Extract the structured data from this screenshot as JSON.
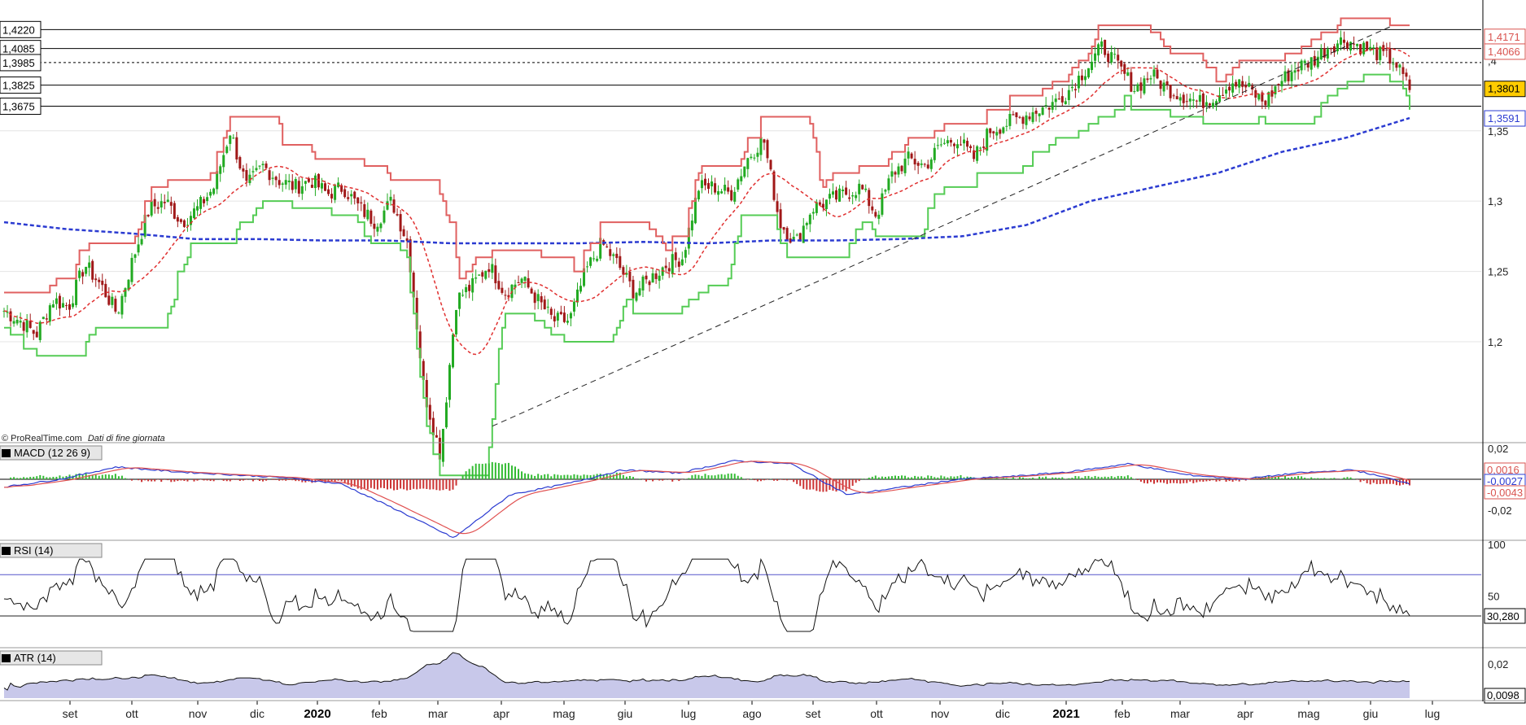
{
  "credit": {
    "source": "© ProRealTime.com",
    "note": "Dati di fine giornata"
  },
  "price_panel": {
    "y_ticks": [
      "1,35",
      "1,3",
      "1,25",
      "1,2"
    ],
    "y_tick_values": [
      1.35,
      1.3,
      1.25,
      1.2
    ],
    "y_top_label": ",4",
    "left_levels": [
      {
        "label": "1,4220",
        "value": 1.422,
        "style": "solid"
      },
      {
        "label": "1,4085",
        "value": 1.4085,
        "style": "solid"
      },
      {
        "label": "1,3985",
        "value": 1.3985,
        "style": "dashed"
      },
      {
        "label": "1,3825",
        "value": 1.3825,
        "style": "solid"
      },
      {
        "label": "1,3675",
        "value": 1.3675,
        "style": "solid"
      }
    ],
    "right_tags": [
      {
        "label": "1,4171",
        "value": 1.4171,
        "color": "#d9534f",
        "bg": "#ffffff"
      },
      {
        "label": "1,4066",
        "value": 1.4066,
        "color": "#d9534f",
        "bg": "#ffffff"
      },
      {
        "label": "1,3801",
        "value": 1.3801,
        "color": "#000000",
        "bg": "#ffcc00"
      },
      {
        "label": "1,3591",
        "value": 1.3591,
        "color": "#2b3bd1",
        "bg": "#ffffff"
      }
    ]
  },
  "macd_panel": {
    "label": "MACD (12 26 9)",
    "y_ticks": [
      "0,02",
      "-0,02"
    ],
    "y_tick_values": [
      0.02,
      -0.02
    ],
    "tags": [
      {
        "label": "0,0016",
        "color": "#d9534f"
      },
      {
        "label": "-0,0027",
        "color": "#2b3bd1"
      },
      {
        "label": "-0,0043",
        "color": "#d9534f"
      }
    ]
  },
  "rsi_panel": {
    "label": "RSI (14)",
    "y_ticks": [
      "100",
      "50"
    ],
    "y_tick_values": [
      100,
      50
    ],
    "tag": "30,280"
  },
  "atr_panel": {
    "label": "ATR (14)",
    "y_ticks": [
      "0,02"
    ],
    "y_tick_values": [
      0.02
    ],
    "tag": "0,0098"
  },
  "x_axis": {
    "ticks": [
      {
        "label": "set",
        "bold": false
      },
      {
        "label": "ott",
        "bold": false
      },
      {
        "label": "nov",
        "bold": false
      },
      {
        "label": "dic",
        "bold": false
      },
      {
        "label": "2020",
        "bold": true
      },
      {
        "label": "feb",
        "bold": false
      },
      {
        "label": "mar",
        "bold": false
      },
      {
        "label": "apr",
        "bold": false
      },
      {
        "label": "mag",
        "bold": false
      },
      {
        "label": "giu",
        "bold": false
      },
      {
        "label": "lug",
        "bold": false
      },
      {
        "label": "ago",
        "bold": false
      },
      {
        "label": "set",
        "bold": false
      },
      {
        "label": "ott",
        "bold": false
      },
      {
        "label": "nov",
        "bold": false
      },
      {
        "label": "dic",
        "bold": false
      },
      {
        "label": "2021",
        "bold": true
      },
      {
        "label": "feb",
        "bold": false
      },
      {
        "label": "mar",
        "bold": false
      },
      {
        "label": "apr",
        "bold": false
      },
      {
        "label": "mag",
        "bold": false
      },
      {
        "label": "giu",
        "bold": false
      },
      {
        "label": "lug",
        "bold": false
      }
    ]
  },
  "colors": {
    "up": "#22aa22",
    "down": "#a01818",
    "ma_fast": "#e03030",
    "ma_slow": "#2b3bd1",
    "stop_red": "#e06060",
    "stop_green": "#55cc55",
    "macd_line": "#2b3bd1",
    "macd_signal": "#e05050",
    "hist_pos": "#33bb33",
    "hist_neg": "#cc3333",
    "atr_fill": "#c8c8ea"
  },
  "chart_data": {
    "type": "line",
    "title": "",
    "series_note": "daily candlestick price with trailing stops, MACD, RSI and ATR sub-panels",
    "price_path": [
      [
        1.222,
        1.215,
        1.205,
        1.23,
        1.225,
        1.255,
        1.24,
        1.22,
        1.26,
        1.295,
        1.3,
        1.285,
        1.295,
        1.31,
        1.35,
        1.31,
        1.325,
        1.315,
        1.31,
        1.315,
        1.305,
        1.31,
        1.295,
        1.285,
        1.3,
        1.27,
        1.165,
        1.12,
        1.23,
        1.24,
        1.255,
        1.235,
        1.245,
        1.23,
        1.215,
        1.215,
        1.25,
        1.27,
        1.255,
        1.235,
        1.245,
        1.255,
        1.26,
        1.31,
        1.31,
        1.305,
        1.33,
        1.345,
        1.285,
        1.27,
        1.295,
        1.3,
        1.305,
        1.31,
        1.29,
        1.32,
        1.33,
        1.325,
        1.34,
        1.345,
        1.33,
        1.35,
        1.355,
        1.36,
        1.365,
        1.37,
        1.38,
        1.395,
        1.41,
        1.395,
        1.38,
        1.39,
        1.38,
        1.375,
        1.37,
        1.375,
        1.385,
        1.38,
        1.37,
        1.385,
        1.395,
        1.4,
        1.41,
        1.415,
        1.41,
        1.405,
        1.4,
        1.38
      ]
    ],
    "ma_slow_path": [
      1.285,
      1.28,
      1.277,
      1.273,
      1.273,
      1.272,
      1.272,
      1.27,
      1.27,
      1.27,
      1.271,
      1.27,
      1.272,
      1.272,
      1.273,
      1.275,
      1.283,
      1.3,
      1.31,
      1.32,
      1.335,
      1.345,
      1.3591
    ],
    "macd": [
      -0.005,
      0.0,
      0.008,
      0.005,
      0.003,
      0.001,
      -0.003,
      -0.02,
      -0.038,
      -0.01,
      -0.003,
      0.006,
      0.004,
      0.012,
      0.01,
      -0.01,
      -0.005,
      0.0,
      0.002,
      0.005,
      0.01,
      0.003,
      0.0,
      0.004,
      0.006,
      -0.0027
    ],
    "rsi_last": 30.28,
    "atr_last": 0.0098
  }
}
